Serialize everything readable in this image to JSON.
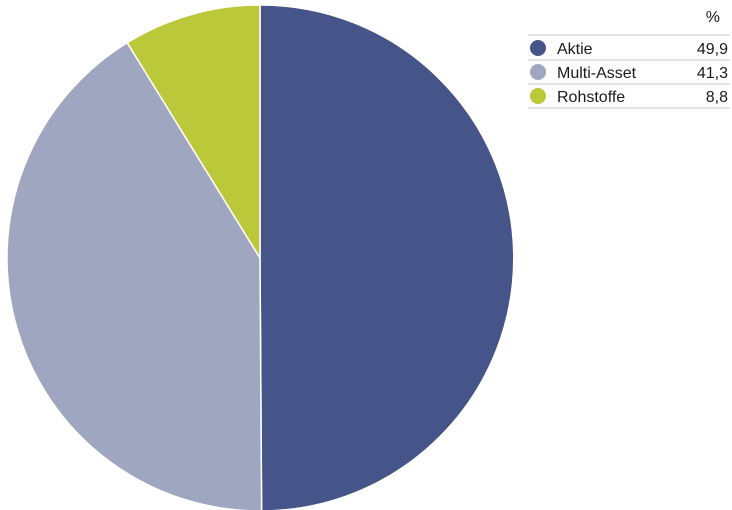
{
  "chart_data": {
    "type": "pie",
    "categories": [
      "Aktie",
      "Multi-Asset",
      "Rohstoffe"
    ],
    "values": [
      49.9,
      41.3,
      8.8
    ],
    "colors": [
      "#465589",
      "#9ea6c0",
      "#bbc83a"
    ],
    "legend": {
      "placement": "top-right",
      "value_header": "%",
      "value_labels": [
        "49,9",
        "41,3",
        "8,8"
      ]
    }
  }
}
